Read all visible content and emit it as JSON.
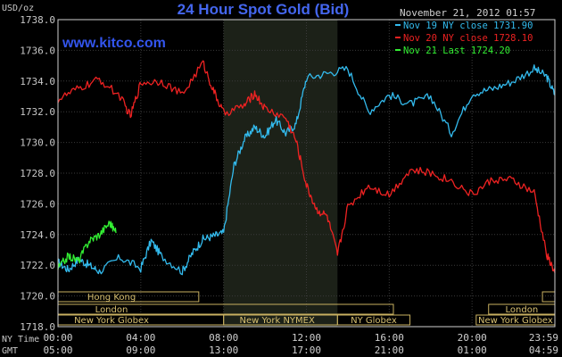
{
  "chart_data": {
    "type": "line",
    "title": "24 Hour Spot Gold (Bid)",
    "watermark": "www.kitco.com",
    "date": "November 21, 2012 01:57",
    "ylabel": "USD/oz",
    "ylim": [
      1718.0,
      1738.0
    ],
    "yticks": [
      "1738.0",
      "1736.0",
      "1734.0",
      "1732.0",
      "1730.0",
      "1728.0",
      "1726.0",
      "1724.0",
      "1722.0",
      "1720.0",
      "1718.0"
    ],
    "xaxis": {
      "row1_label": "NY Time",
      "row2_label": "GMT",
      "ny_time_ticks": [
        "00:00",
        "04:00",
        "08:00",
        "12:00",
        "16:00",
        "20:00",
        "23:59"
      ],
      "gmt_ticks": [
        "05:00",
        "09:00",
        "13:00",
        "17:00",
        "21:00",
        "01:00",
        "04:59"
      ]
    },
    "shaded_session": "New York NYMEX",
    "series": [
      {
        "name": "Nov 19 NY close 1731.90",
        "color": "#33bbee",
        "x": [
          0,
          0.5,
          1,
          1.5,
          2,
          3,
          4,
          4.5,
          5,
          6,
          6.5,
          7,
          7.5,
          8,
          8.5,
          9,
          9.5,
          10,
          10.5,
          11,
          11.5,
          12,
          13,
          14,
          15,
          16,
          17,
          18,
          19,
          20,
          21,
          22,
          23,
          23.6,
          24
        ],
        "values": [
          1722.2,
          1721.7,
          1722.4,
          1722.0,
          1721.6,
          1722.5,
          1721.8,
          1723.6,
          1722.6,
          1721.6,
          1722.8,
          1723.7,
          1723.9,
          1724.1,
          1728.5,
          1730.2,
          1731.0,
          1730.4,
          1731.5,
          1730.6,
          1731.2,
          1734.2,
          1734.5,
          1734.8,
          1732.0,
          1733.1,
          1732.5,
          1733.0,
          1730.6,
          1733.2,
          1733.5,
          1734.0,
          1734.8,
          1734.3,
          1733.1
        ]
      },
      {
        "name": "Nov 20 NY close 1728.10",
        "color": "#ee2222",
        "x": [
          0,
          1,
          2,
          3,
          3.5,
          4,
          5,
          6,
          7,
          7.5,
          8,
          9,
          9.5,
          10,
          11,
          11.5,
          12,
          12.5,
          13,
          13.5,
          14,
          15,
          16,
          17,
          18,
          19,
          20,
          21,
          22,
          23,
          23.6,
          24
        ],
        "values": [
          1732.8,
          1733.5,
          1734.1,
          1733.0,
          1731.7,
          1733.9,
          1734.0,
          1733.1,
          1735.2,
          1733.4,
          1731.9,
          1732.4,
          1733.2,
          1732.2,
          1731.6,
          1730.1,
          1727.2,
          1725.6,
          1725.2,
          1722.7,
          1725.8,
          1727.2,
          1726.6,
          1728.2,
          1728.0,
          1727.5,
          1726.6,
          1727.6,
          1727.5,
          1726.7,
          1722.7,
          1721.5
        ]
      },
      {
        "name": "Nov 21 Last 1724.20",
        "color": "#33ee33",
        "x": [
          0,
          0.5,
          1,
          1.5,
          2,
          2.5,
          2.8
        ],
        "values": [
          1721.8,
          1722.6,
          1722.3,
          1723.6,
          1724.0,
          1724.8,
          1724.1
        ]
      }
    ],
    "market_sessions": [
      {
        "label": "Hong Kong",
        "row": 1,
        "segments": [
          [
            0,
            6.8
          ],
          [
            23.4,
            24
          ]
        ]
      },
      {
        "label": "London",
        "row": 2,
        "segments": [
          [
            0,
            16.2
          ],
          [
            20.8,
            24
          ]
        ]
      },
      {
        "label": "New York Globex",
        "row": 3,
        "segments": [
          [
            0,
            8
          ],
          [
            20.2,
            24
          ]
        ]
      },
      {
        "label": "New York NYMEX",
        "row": 3,
        "segments": [
          [
            8,
            13.5
          ]
        ]
      },
      {
        "label": "NY Globex",
        "row": 3,
        "segments": [
          [
            13.5,
            17
          ]
        ]
      }
    ],
    "grid": true
  }
}
